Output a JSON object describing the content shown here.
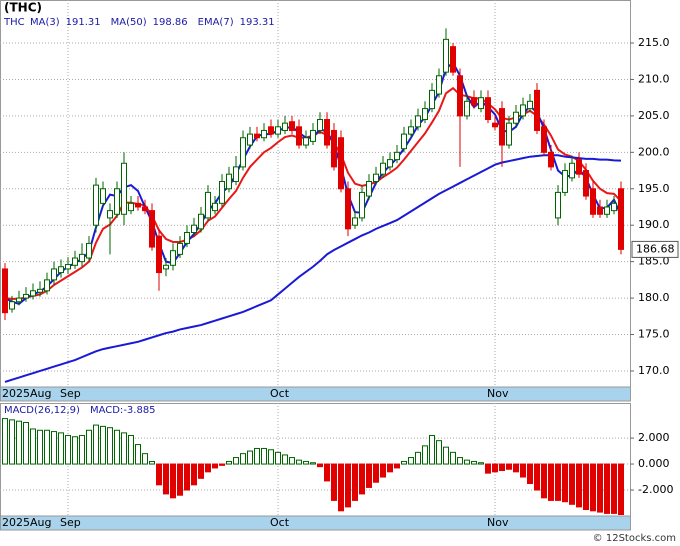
{
  "chart_data": [
    {
      "type": "candlestick",
      "title": "(THC)",
      "symbol": "THC",
      "categories": [
        "2025Aug",
        null,
        null,
        null,
        null,
        null,
        null,
        null,
        null,
        "Sep",
        null,
        null,
        null,
        null,
        null,
        null,
        null,
        null,
        null,
        null,
        null,
        null,
        null,
        null,
        null,
        null,
        null,
        null,
        null,
        null,
        null,
        null,
        null,
        null,
        null,
        null,
        null,
        null,
        null,
        "Oct",
        null,
        null,
        null,
        null,
        null,
        null,
        null,
        null,
        null,
        null,
        null,
        null,
        null,
        null,
        null,
        null,
        null,
        null,
        null,
        null,
        null,
        null,
        null,
        null,
        null,
        null,
        null,
        null,
        null,
        null,
        "Nov",
        null,
        null,
        null,
        null,
        null,
        null,
        null,
        null,
        null,
        null,
        null,
        null,
        null,
        null,
        null,
        null,
        null,
        null
      ],
      "open": [
        184,
        178.5,
        179.5,
        180,
        180.3,
        180.8,
        181,
        182.5,
        183.5,
        184,
        184.5,
        185,
        185.5,
        190,
        193,
        191,
        191.5,
        191.5,
        192,
        193,
        192.5,
        192,
        188.5,
        184,
        184.5,
        186,
        187.5,
        189,
        189.5,
        191,
        192,
        193,
        195,
        196,
        198,
        201,
        202.5,
        202,
        203.5,
        202.5,
        203,
        204.2,
        203.5,
        201,
        201.5,
        203,
        204.5,
        203,
        202,
        195,
        190,
        191,
        194,
        196,
        197,
        198,
        199,
        200.5,
        202.5,
        203.5,
        204.5,
        206,
        208,
        211,
        214.5,
        210.5,
        205,
        207.5,
        206,
        207.5,
        204,
        206,
        201,
        204,
        205,
        206,
        208.5,
        203.5,
        200,
        191,
        194.5,
        196.5,
        199,
        197.5,
        195,
        192.5,
        191.5,
        192,
        195
      ],
      "high": [
        184.8,
        180.3,
        181,
        181.5,
        182,
        182.3,
        183.5,
        185,
        185.3,
        185.6,
        186.5,
        187.5,
        188.5,
        196.5,
        196,
        193,
        196,
        200,
        194,
        194,
        193.5,
        193,
        189.5,
        185.5,
        187.5,
        188.5,
        190,
        191,
        192.5,
        195.5,
        194,
        197,
        198,
        199.5,
        203,
        203.5,
        203.5,
        204,
        204.5,
        204.5,
        205,
        205,
        204.5,
        203,
        204,
        205.5,
        205.5,
        204,
        203,
        196,
        192,
        195.5,
        197,
        198,
        199.5,
        200,
        201,
        203.5,
        204.5,
        206,
        207,
        209.5,
        211.5,
        217,
        215,
        211.5,
        208,
        208.5,
        208.5,
        208.5,
        205,
        207,
        205,
        206.5,
        207.5,
        208,
        209.5,
        204.5,
        201,
        195.5,
        198.5,
        199.5,
        200,
        198.5,
        196,
        193.5,
        193.5,
        194,
        196
      ],
      "low": [
        177,
        178,
        179,
        179.5,
        179.8,
        180.2,
        180.5,
        181.8,
        182.8,
        183.3,
        184,
        184.3,
        185,
        189,
        192.5,
        186,
        191,
        190,
        191.5,
        192,
        191.5,
        186.5,
        181,
        183,
        183.8,
        185.5,
        187,
        188.5,
        189,
        190.5,
        191.5,
        192.5,
        194.5,
        195.5,
        197.5,
        200.5,
        201.5,
        201.5,
        202,
        202,
        202.5,
        202.5,
        200.5,
        200.5,
        201,
        202.5,
        200.5,
        197.5,
        194.5,
        188.5,
        189.5,
        190.5,
        193.5,
        195.5,
        196.5,
        197.5,
        198.5,
        200,
        202,
        203,
        204,
        205.5,
        207.5,
        210.5,
        210.5,
        198,
        204.5,
        206,
        205.5,
        204,
        203,
        198,
        200.5,
        203.5,
        204.5,
        205.5,
        202.5,
        199.5,
        197.5,
        190,
        194,
        196,
        196.5,
        193.5,
        191,
        191,
        191,
        191.5,
        186
      ],
      "close": [
        178,
        179.5,
        180,
        180.5,
        181,
        181.2,
        182.5,
        184,
        184.3,
        184.6,
        185.5,
        186,
        187.5,
        195.5,
        195,
        192,
        195,
        198.5,
        193,
        192.5,
        192,
        187,
        183.5,
        184.5,
        186.5,
        187.5,
        189,
        190,
        191.5,
        194.5,
        193,
        196,
        197,
        198,
        202,
        202.5,
        202,
        203,
        202.5,
        203.5,
        204,
        203,
        201,
        202,
        203,
        204.5,
        201,
        198,
        195,
        189.5,
        191,
        194.5,
        196,
        197,
        198.5,
        199,
        200,
        202.5,
        203.5,
        205,
        206,
        208.5,
        210.5,
        215.5,
        211,
        205,
        207,
        206.5,
        207.5,
        204.5,
        203.5,
        201,
        204,
        205.5,
        206.5,
        207,
        203,
        200,
        198,
        194.5,
        197.5,
        198.5,
        197,
        194,
        191.5,
        191.5,
        192.5,
        193,
        186.68
      ],
      "up_color": "#006400",
      "down_color": "#e00000",
      "series": [
        {
          "name": "EMA(7)",
          "color": "#e81818",
          "values": [
            180,
            179.9,
            179.9,
            180.1,
            180.3,
            180.5,
            181,
            181.8,
            182.4,
            183,
            183.6,
            184.2,
            185,
            187.6,
            189.5,
            190.1,
            191.3,
            193.1,
            193.1,
            192.9,
            192.7,
            191.3,
            189.3,
            188.1,
            187.7,
            187.7,
            188,
            188.5,
            189.3,
            190.6,
            191.2,
            192.4,
            193.6,
            194.7,
            196.5,
            198,
            199,
            200,
            200.6,
            201.4,
            202.1,
            202.3,
            202,
            202,
            202.3,
            202.8,
            202.4,
            201.3,
            199.7,
            197.2,
            195.7,
            195.4,
            195.6,
            195.9,
            196.6,
            197.2,
            197.9,
            199,
            200.2,
            201.4,
            202.6,
            204.1,
            205.7,
            208.1,
            208.8,
            207.9,
            207.7,
            207.4,
            207.4,
            206.7,
            205.9,
            204.7,
            204.5,
            204.8,
            205.2,
            205.7,
            205,
            203.8,
            202.3,
            200.4,
            199.7,
            199.4,
            198.8,
            197.6,
            196.1,
            195,
            194.4,
            194.3,
            193.31
          ]
        },
        {
          "name": "MA(50)",
          "color": "#1a1ad6",
          "values": [
            168.5,
            168.8,
            169.1,
            169.4,
            169.7,
            170,
            170.3,
            170.6,
            170.9,
            171.2,
            171.5,
            171.9,
            172.3,
            172.7,
            173,
            173.2,
            173.4,
            173.6,
            173.8,
            174,
            174.3,
            174.6,
            174.9,
            175.2,
            175.4,
            175.7,
            175.9,
            176.1,
            176.3,
            176.6,
            176.9,
            177.2,
            177.5,
            177.8,
            178.1,
            178.5,
            178.9,
            179.3,
            179.7,
            180.5,
            181.3,
            182.1,
            182.9,
            183.6,
            184.3,
            185.1,
            186,
            186.6,
            187.1,
            187.6,
            188.1,
            188.6,
            189,
            189.5,
            189.9,
            190.3,
            190.7,
            191.3,
            191.9,
            192.5,
            193.1,
            193.7,
            194.3,
            194.8,
            195.3,
            195.8,
            196.3,
            196.8,
            197.3,
            197.8,
            198.3,
            198.6,
            198.8,
            199,
            199.2,
            199.4,
            199.5,
            199.6,
            199.6,
            199.6,
            199.4,
            199.3,
            199.2,
            199.1,
            199.1,
            199,
            199,
            198.9,
            198.86
          ]
        },
        {
          "name": "MA(3)",
          "color": "#1a1ad6",
          "values": [
            180,
            179.5,
            179.2,
            180,
            180.5,
            180.9,
            181.6,
            182.6,
            183.6,
            184.3,
            184.8,
            185.4,
            186.3,
            189.7,
            192.7,
            194.2,
            194,
            195.2,
            195.5,
            194.7,
            192.5,
            190.5,
            187.5,
            185,
            184.8,
            186.2,
            187.7,
            188.8,
            190.2,
            192,
            193,
            194.5,
            195.3,
            197,
            199,
            200.8,
            202.2,
            202.5,
            202.5,
            203,
            203.3,
            203.5,
            202.7,
            202,
            202,
            203.2,
            202.8,
            201.2,
            198,
            194.2,
            191.8,
            191.7,
            193.8,
            195.8,
            197.2,
            198.2,
            199.2,
            200.5,
            202,
            203.7,
            204.8,
            206.5,
            208.3,
            211.5,
            212.3,
            210.5,
            207.7,
            206.2,
            207,
            206.2,
            205.2,
            203,
            202.8,
            203.5,
            205.3,
            206.3,
            205.5,
            203.3,
            200.3,
            197.5,
            196.7,
            196.8,
            197.7,
            196.5,
            194.2,
            192.3,
            192.4,
            193.5,
            191.31
          ]
        }
      ],
      "legend_order": [
        2,
        1,
        0
      ],
      "ylim": [
        167.8,
        220.9
      ],
      "yticks": [
        {
          "value": 170,
          "label": "170.0"
        },
        {
          "value": 175,
          "label": "175.0"
        },
        {
          "value": 180,
          "label": "180.0"
        },
        {
          "value": 185,
          "label": "185.0"
        },
        {
          "value": 190,
          "label": "190.0"
        },
        {
          "value": 195,
          "label": "195.0"
        },
        {
          "value": 200,
          "label": "200.0"
        },
        {
          "value": 205,
          "label": "205.0"
        },
        {
          "value": 210,
          "label": "210.0"
        },
        {
          "value": 215,
          "label": "215.0"
        }
      ],
      "grid": true
    },
    {
      "type": "histogram",
      "title": "MACD(26,12,9)",
      "readout": "MACD:",
      "categories": [
        "2025Aug",
        null,
        null,
        null,
        null,
        null,
        null,
        null,
        null,
        "Sep",
        null,
        null,
        null,
        null,
        null,
        null,
        null,
        null,
        null,
        null,
        null,
        null,
        null,
        null,
        null,
        null,
        null,
        null,
        null,
        null,
        null,
        null,
        null,
        null,
        null,
        null,
        null,
        null,
        null,
        "Oct",
        null,
        null,
        null,
        null,
        null,
        null,
        null,
        null,
        null,
        null,
        null,
        null,
        null,
        null,
        null,
        null,
        null,
        null,
        null,
        null,
        null,
        null,
        null,
        null,
        null,
        null,
        null,
        null,
        null,
        null,
        "Nov",
        null,
        null,
        null,
        null,
        null,
        null,
        null,
        null,
        null,
        null,
        null,
        null,
        null,
        null,
        null,
        null,
        null,
        null
      ],
      "values": [
        3.5,
        3.4,
        3.3,
        3.2,
        2.7,
        2.6,
        2.6,
        2.5,
        2.4,
        2.2,
        2.1,
        2.2,
        2.6,
        3,
        2.9,
        2.8,
        2.6,
        2.4,
        2.2,
        1.5,
        0.8,
        0.2,
        -1.6,
        -2.3,
        -2.6,
        -2.4,
        -2,
        -1.6,
        -1.1,
        -0.6,
        -0.3,
        -0.1,
        0.2,
        0.5,
        0.8,
        1,
        1.2,
        1.2,
        1.1,
        0.9,
        0.7,
        0.5,
        0.3,
        0.2,
        0.1,
        -0.2,
        -1.3,
        -2.8,
        -3.6,
        -3.3,
        -2.8,
        -2.3,
        -1.8,
        -1.4,
        -1,
        -0.6,
        -0.3,
        0.2,
        0.5,
        0.9,
        1.4,
        2.2,
        1.8,
        1.3,
        0.9,
        0.5,
        0.3,
        0.2,
        0.1,
        -0.7,
        -0.6,
        -0.5,
        -0.4,
        -0.6,
        -1,
        -1.5,
        -2,
        -2.6,
        -2.8,
        -2.8,
        -2.9,
        -3.1,
        -3.3,
        -3.5,
        -3.6,
        -3.7,
        -3.8,
        -3.8,
        -3.885
      ],
      "up_color": "#006400",
      "down_color": "#e00000",
      "ylim": [
        -4,
        4.7
      ],
      "yticks": [
        {
          "value": 2,
          "label": "2.000"
        },
        {
          "value": 0,
          "label": "0.000"
        },
        {
          "value": -2,
          "label": "-2.000"
        }
      ],
      "grid": true
    }
  ],
  "watermark": "© 12Stocks.com"
}
